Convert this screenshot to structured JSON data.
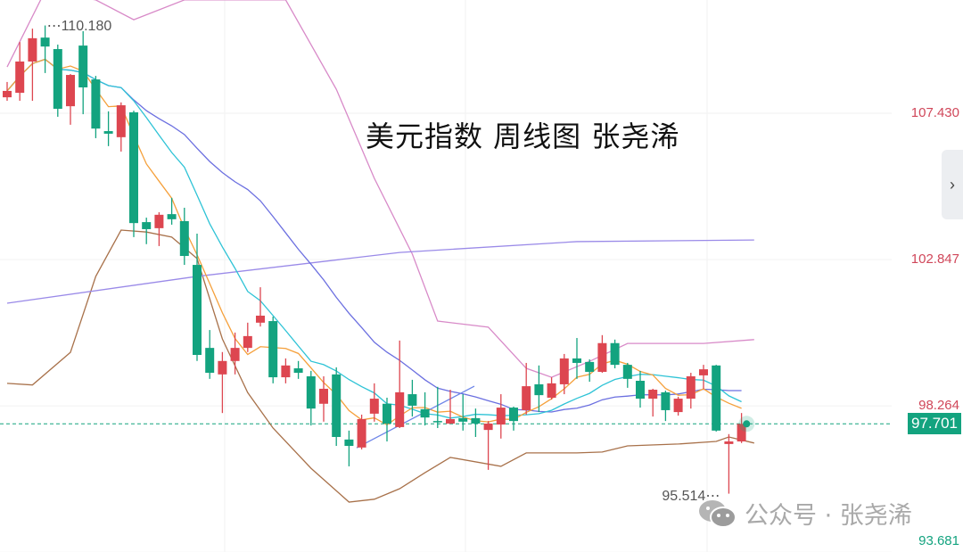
{
  "title": "美元指数 周线图 张尧浠",
  "watermark": {
    "text": "公众号 · 张尧浠",
    "icon": "wechat-icon"
  },
  "nav": {
    "icon": "chevron-right-icon",
    "glyph": "›"
  },
  "colors": {
    "up": "#dd4650",
    "down": "#13a37f",
    "ma5": "#f5a03b",
    "ma10": "#2ec3d6",
    "ma20": "#6b6fe0",
    "long_ma": "#9a8ae8",
    "boll_upper": "#d88ac8",
    "boll_lower": "#a8714a",
    "trendline": "#6f86e8",
    "last_price": "#13a37f",
    "axis_red": "#d0475a",
    "axis_green": "#13a37f"
  },
  "chart_data": {
    "type": "candlestick",
    "title": "美元指数 周线图 张尧浠",
    "ylim": [
      93.681,
      110.98
    ],
    "y_ticks": [
      {
        "value": 107.43,
        "label": "107.430",
        "color": "red"
      },
      {
        "value": 102.847,
        "label": "102.847",
        "color": "red"
      },
      {
        "value": 98.264,
        "label": "98.264",
        "color": "red"
      },
      {
        "value": 93.681,
        "label": "93.681",
        "color": "green"
      }
    ],
    "last_price": {
      "value": 97.701,
      "label": "97.701"
    },
    "high_marker": {
      "value": 110.18,
      "label": "110.180",
      "index": 3
    },
    "low_marker": {
      "value": 95.514,
      "label": "95.514",
      "index": 57
    },
    "candles": [
      [
        107.93,
        108.41,
        107.82,
        108.13
      ],
      [
        108.07,
        109.66,
        107.82,
        109.05
      ],
      [
        109.05,
        110.08,
        107.82,
        109.78
      ],
      [
        109.8,
        110.18,
        108.69,
        109.52
      ],
      [
        109.44,
        109.58,
        107.32,
        107.57
      ],
      [
        107.65,
        108.66,
        107.07,
        108.63
      ],
      [
        109.55,
        110.0,
        107.4,
        108.24
      ],
      [
        108.49,
        108.6,
        106.65,
        106.95
      ],
      [
        106.87,
        107.49,
        106.4,
        106.79
      ],
      [
        106.68,
        107.77,
        106.23,
        107.68
      ],
      [
        107.46,
        107.51,
        103.55,
        103.99
      ],
      [
        104.02,
        104.16,
        103.33,
        103.8
      ],
      [
        103.83,
        104.33,
        103.27,
        104.25
      ],
      [
        104.27,
        104.78,
        103.94,
        104.11
      ],
      [
        104.05,
        104.47,
        102.68,
        102.96
      ],
      [
        102.68,
        103.66,
        99.67,
        99.86
      ],
      [
        100.08,
        100.64,
        99.11,
        99.3
      ],
      [
        99.25,
        99.95,
        98.04,
        99.67
      ],
      [
        99.67,
        100.56,
        99.25,
        100.08
      ],
      [
        100.08,
        100.87,
        99.95,
        100.45
      ],
      [
        100.87,
        101.98,
        100.75,
        101.09
      ],
      [
        100.92,
        101.06,
        98.97,
        99.16
      ],
      [
        99.16,
        99.75,
        98.97,
        99.53
      ],
      [
        99.44,
        99.67,
        99.11,
        99.3
      ],
      [
        99.19,
        99.36,
        97.65,
        98.18
      ],
      [
        98.33,
        99.19,
        97.77,
        98.8
      ],
      [
        99.25,
        99.47,
        97.01,
        97.29
      ],
      [
        97.21,
        97.49,
        96.37,
        97.01
      ],
      [
        96.96,
        97.99,
        96.9,
        97.85
      ],
      [
        98.02,
        98.97,
        97.77,
        98.49
      ],
      [
        98.33,
        98.52,
        97.15,
        97.71
      ],
      [
        97.6,
        100.31,
        97.57,
        98.69
      ],
      [
        98.63,
        99.08,
        97.93,
        98.27
      ],
      [
        98.16,
        98.69,
        97.65,
        97.9
      ],
      [
        97.79,
        98.86,
        97.57,
        97.77
      ],
      [
        97.71,
        98.77,
        97.7,
        97.85
      ],
      [
        97.88,
        98.63,
        97.49,
        97.77
      ],
      [
        97.88,
        98.18,
        97.29,
        97.71
      ],
      [
        97.51,
        97.79,
        96.26,
        97.71
      ],
      [
        97.68,
        98.63,
        97.24,
        98.21
      ],
      [
        98.21,
        98.24,
        97.49,
        97.79
      ],
      [
        98.13,
        99.61,
        97.99,
        98.88
      ],
      [
        98.94,
        99.53,
        98.07,
        98.6
      ],
      [
        98.52,
        99.16,
        98.46,
        98.97
      ],
      [
        98.94,
        99.89,
        98.63,
        99.75
      ],
      [
        99.75,
        100.39,
        99.11,
        99.61
      ],
      [
        99.64,
        99.72,
        99.02,
        99.33
      ],
      [
        99.33,
        100.48,
        99.3,
        100.23
      ],
      [
        100.23,
        100.34,
        99.44,
        99.55
      ],
      [
        99.55,
        99.61,
        98.83,
        99.11
      ],
      [
        99.05,
        99.36,
        98.21,
        98.49
      ],
      [
        98.49,
        98.8,
        97.93,
        98.77
      ],
      [
        98.69,
        98.74,
        97.79,
        98.13
      ],
      [
        98.07,
        98.55,
        97.96,
        98.49
      ],
      [
        98.49,
        99.3,
        98.18,
        99.19
      ],
      [
        99.22,
        99.55,
        98.8,
        99.41
      ],
      [
        99.53,
        99.55,
        97.46,
        97.49
      ],
      [
        97.07,
        97.38,
        95.514,
        97.15
      ],
      [
        97.15,
        98.04,
        97.1,
        97.701
      ]
    ],
    "candle_fields": [
      "open",
      "high",
      "low",
      "close"
    ],
    "overlays": {
      "long_ma": [
        [
          0,
          101.48
        ],
        [
          15,
          102.32
        ],
        [
          31,
          103.07
        ],
        [
          45,
          103.41
        ],
        [
          59,
          103.46
        ]
      ],
      "boll_upper": [
        [
          0,
          108.88
        ],
        [
          3,
          111.26
        ],
        [
          7,
          110.98
        ],
        [
          10,
          110.36
        ],
        [
          14,
          110.98
        ],
        [
          22,
          110.98
        ],
        [
          26,
          108.18
        ],
        [
          29,
          105.39
        ],
        [
          32,
          103.02
        ],
        [
          34,
          100.92
        ],
        [
          38,
          100.73
        ],
        [
          41,
          99.44
        ],
        [
          43,
          99.16
        ],
        [
          46,
          99.66
        ],
        [
          49,
          100.22
        ],
        [
          55,
          100.22
        ],
        [
          59,
          100.34
        ]
      ],
      "boll_lower": [
        [
          0,
          98.97
        ],
        [
          2,
          98.92
        ],
        [
          5,
          99.94
        ],
        [
          7,
          102.32
        ],
        [
          9,
          103.77
        ],
        [
          11,
          103.71
        ],
        [
          13,
          103.55
        ],
        [
          15,
          102.88
        ],
        [
          17,
          100.36
        ],
        [
          19,
          98.68
        ],
        [
          21,
          97.57
        ],
        [
          24,
          96.31
        ],
        [
          27,
          95.25
        ],
        [
          29,
          95.34
        ],
        [
          31,
          95.67
        ],
        [
          33,
          96.17
        ],
        [
          35,
          96.65
        ],
        [
          39,
          96.37
        ],
        [
          41,
          96.79
        ],
        [
          45,
          96.79
        ],
        [
          47,
          96.82
        ],
        [
          49,
          97.01
        ],
        [
          53,
          97.07
        ],
        [
          56,
          97.15
        ],
        [
          57,
          97.29
        ],
        [
          59,
          97.1
        ]
      ],
      "trendline": [
        [
          27.6,
          96.95
        ],
        [
          36.9,
          98.88
        ]
      ]
    }
  }
}
